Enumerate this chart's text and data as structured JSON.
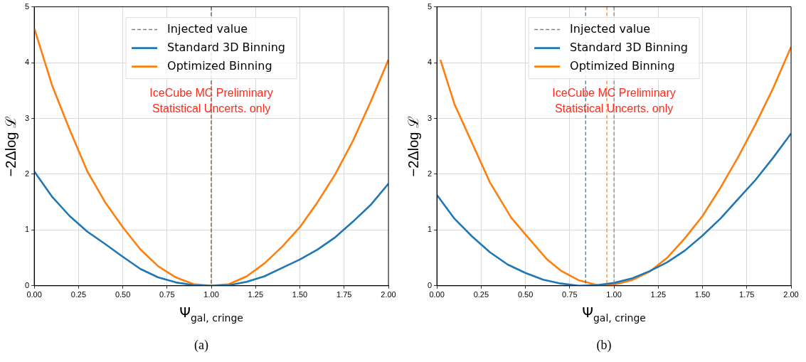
{
  "chart_data": [
    {
      "type": "line",
      "xlabel": "Ψ$_{gal, cringe}$",
      "ylabel": "−2Δlog ℒ",
      "xlim": [
        0,
        2
      ],
      "ylim": [
        0,
        5
      ],
      "xticks": [
        {
          "value": 0,
          "label": "0.00"
        },
        {
          "value": 0.25,
          "label": "0.25"
        },
        {
          "value": 0.5,
          "label": "0.50"
        },
        {
          "value": 0.75,
          "label": "0.75"
        },
        {
          "value": 1,
          "label": "1.00"
        },
        {
          "value": 1.25,
          "label": "1.25"
        },
        {
          "value": 1.5,
          "label": "1.50"
        },
        {
          "value": 1.75,
          "label": "1.75"
        },
        {
          "value": 2,
          "label": "2.00"
        }
      ],
      "yticks": [
        0,
        1,
        2,
        3,
        4,
        5
      ],
      "grid": true,
      "legend": "top",
      "marker": "none",
      "line_style": "solid",
      "x": [
        0,
        0.1,
        0.2,
        0.3,
        0.4,
        0.5,
        0.6,
        0.7,
        0.8,
        0.9,
        1.0,
        1.1,
        1.2,
        1.3,
        1.4,
        1.5,
        1.6,
        1.7,
        1.8,
        1.9,
        2.0
      ],
      "series": [
        {
          "name": "Standard 3D Binning",
          "color": "#1f77b4",
          "values": [
            2.05,
            1.6,
            1.25,
            0.97,
            0.75,
            0.52,
            0.3,
            0.15,
            0.06,
            0.01,
            0,
            0.01,
            0.07,
            0.17,
            0.32,
            0.47,
            0.65,
            0.87,
            1.15,
            1.45,
            1.83
          ]
        },
        {
          "name": "Optimized Binning",
          "color": "#ff7f0e",
          "values": [
            4.62,
            3.6,
            2.8,
            2.05,
            1.5,
            1.05,
            0.65,
            0.35,
            0.15,
            0.03,
            0,
            0.03,
            0.17,
            0.4,
            0.7,
            1.05,
            1.5,
            2.0,
            2.6,
            3.3,
            4.05
          ]
        }
      ],
      "ref_lines": [
        {
          "axis": "x",
          "value": 1.0,
          "color": "#1f77b4",
          "line_style": "dashed"
        },
        {
          "axis": "x",
          "value": 1.0,
          "color": "#ff7f0e",
          "line_style": "dashed"
        },
        {
          "axis": "x",
          "value": 1.0,
          "label": "Injected value",
          "color": "#7f7f7f",
          "line_style": "dashed"
        }
      ],
      "annotations": [
        "IceCube MC Preliminary\nStatistical Uncerts. only",
        "(a)"
      ]
    },
    {
      "type": "line",
      "xlabel": "Ψ$_{gal, cringe}$",
      "ylabel": "−2Δlog ℒ",
      "xlim": [
        0,
        2
      ],
      "ylim": [
        0,
        5
      ],
      "xticks": [
        {
          "value": 0,
          "label": "0.00"
        },
        {
          "value": 0.25,
          "label": "0.25"
        },
        {
          "value": 0.5,
          "label": "0.50"
        },
        {
          "value": 0.75,
          "label": "0.75"
        },
        {
          "value": 1,
          "label": "1.00"
        },
        {
          "value": 1.25,
          "label": "1.25"
        },
        {
          "value": 1.5,
          "label": "1.50"
        },
        {
          "value": 1.75,
          "label": "1.75"
        },
        {
          "value": 2,
          "label": "2.00"
        }
      ],
      "yticks": [
        0,
        1,
        2,
        3,
        4,
        5
      ],
      "grid": true,
      "legend": "top",
      "marker": "none",
      "line_style": "solid",
      "series": [
        {
          "name": "Standard 3D Binning",
          "color": "#1f77b4",
          "x": [
            0,
            0.1,
            0.2,
            0.3,
            0.4,
            0.5,
            0.6,
            0.7,
            0.8,
            0.9,
            1.0,
            1.1,
            1.2,
            1.3,
            1.4,
            1.5,
            1.6,
            1.7,
            1.8,
            1.9,
            2.0
          ],
          "values": [
            1.63,
            1.2,
            0.88,
            0.6,
            0.38,
            0.23,
            0.11,
            0.04,
            0.0,
            0.01,
            0.05,
            0.13,
            0.26,
            0.42,
            0.63,
            0.9,
            1.2,
            1.55,
            1.9,
            2.3,
            2.73
          ]
        },
        {
          "name": "Optimized Binning",
          "color": "#ff7f0e",
          "x": [
            0.02,
            0.1,
            0.2,
            0.3,
            0.42,
            0.5,
            0.62,
            0.7,
            0.8,
            0.92,
            1.0,
            1.1,
            1.2,
            1.3,
            1.4,
            1.5,
            1.6,
            1.7,
            1.8,
            1.9,
            2.0
          ],
          "values": [
            4.05,
            3.25,
            2.55,
            1.85,
            1.22,
            0.92,
            0.48,
            0.27,
            0.1,
            0,
            0.02,
            0.1,
            0.25,
            0.5,
            0.85,
            1.25,
            1.75,
            2.3,
            2.9,
            3.55,
            4.28
          ]
        }
      ],
      "ref_lines": [
        {
          "axis": "x",
          "value": 0.84,
          "color": "#1f77b4",
          "line_style": "dashed"
        },
        {
          "axis": "x",
          "value": 0.96,
          "color": "#ff7f0e",
          "line_style": "dashed"
        },
        {
          "axis": "x",
          "value": 1.0,
          "label": "Injected value",
          "color": "#7f7f7f",
          "line_style": "dashed"
        }
      ],
      "annotations": [
        "IceCube MC Preliminary\nStatistical Uncerts. only",
        "(b)"
      ]
    }
  ]
}
